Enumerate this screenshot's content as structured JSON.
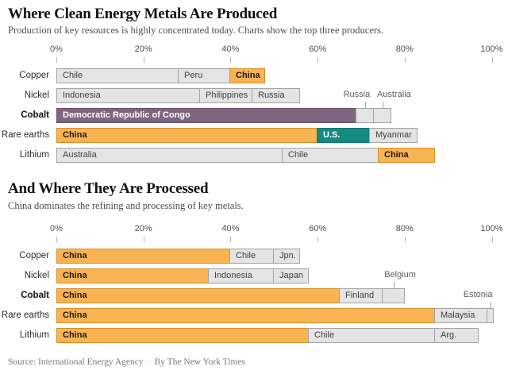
{
  "chart_data": [
    {
      "type": "bar",
      "orientation": "horizontal",
      "title": "Where Clean Energy Metals Are Produced",
      "subtitle": "Production of key resources is highly concentrated today. Charts show the top three producers.",
      "unit": "%",
      "xlim": [
        0,
        100
      ],
      "grid": false,
      "axis": {
        "tick_labels": [
          "0%",
          "20%",
          "40%",
          "60%",
          "80%",
          "100%"
        ],
        "tick_positions": [
          0,
          20,
          40,
          60,
          80,
          100
        ]
      },
      "categories": [
        "Copper",
        "Nickel",
        "Cobalt",
        "Rare earths",
        "Lithium"
      ],
      "rows": [
        {
          "metal": "Copper",
          "segments": [
            {
              "label": "Chile",
              "value": 28,
              "color": "gray"
            },
            {
              "label": "Peru",
              "value": 12,
              "color": "gray"
            },
            {
              "label": "China",
              "value": 8,
              "color": "orange"
            }
          ]
        },
        {
          "metal": "Nickel",
          "segments": [
            {
              "label": "Indonesia",
              "value": 33,
              "color": "gray"
            },
            {
              "label": "Philippines",
              "value": 12,
              "color": "gray"
            },
            {
              "label": "Russia",
              "value": 11,
              "color": "gray"
            }
          ]
        },
        {
          "metal": "Cobalt",
          "bold": true,
          "segments": [
            {
              "label": "Democratic Republic of Congo",
              "value": 69,
              "color": "purple"
            },
            {
              "label": "Russia",
              "value": 4,
              "color": "gray",
              "callout": true,
              "label_dx": -11
            },
            {
              "label": "Australia",
              "value": 4,
              "color": "gray",
              "callout": true,
              "label_dx": 14
            }
          ]
        },
        {
          "metal": "Rare earths",
          "segments": [
            {
              "label": "China",
              "value": 60,
              "color": "orange"
            },
            {
              "label": "U.S.",
              "value": 12,
              "color": "teal"
            },
            {
              "label": "Myanmar",
              "value": 11,
              "color": "gray"
            }
          ]
        },
        {
          "metal": "Lithium",
          "segments": [
            {
              "label": "Australia",
              "value": 52,
              "color": "gray"
            },
            {
              "label": "Chile",
              "value": 22,
              "color": "gray"
            },
            {
              "label": "China",
              "value": 13,
              "color": "orange"
            }
          ]
        }
      ]
    },
    {
      "type": "bar",
      "orientation": "horizontal",
      "title": "And Where They Are Processed",
      "subtitle": "China dominates the refining and processing of key metals.",
      "unit": "%",
      "xlim": [
        0,
        100
      ],
      "grid": false,
      "axis": {
        "tick_labels": [
          "0%",
          "20%",
          "40%",
          "60%",
          "80%",
          "100%"
        ],
        "tick_positions": [
          0,
          20,
          40,
          60,
          80,
          100
        ]
      },
      "categories": [
        "Copper",
        "Nickel",
        "Cobalt",
        "Rare earths",
        "Lithium"
      ],
      "rows": [
        {
          "metal": "Copper",
          "segments": [
            {
              "label": "China",
              "value": 40,
              "color": "orange"
            },
            {
              "label": "Chile",
              "value": 10,
              "color": "gray"
            },
            {
              "label": "Jpn.",
              "value": 6,
              "color": "gray"
            }
          ]
        },
        {
          "metal": "Nickel",
          "segments": [
            {
              "label": "China",
              "value": 35,
              "color": "orange"
            },
            {
              "label": "Indonesia",
              "value": 15,
              "color": "gray"
            },
            {
              "label": "Japan",
              "value": 8,
              "color": "gray"
            }
          ]
        },
        {
          "metal": "Cobalt",
          "bold": true,
          "segments": [
            {
              "label": "China",
              "value": 65,
              "color": "orange"
            },
            {
              "label": "Finland",
              "value": 10,
              "color": "gray"
            },
            {
              "label": "Belgium",
              "value": 5,
              "color": "gray",
              "callout": true,
              "label_dx": 8
            }
          ]
        },
        {
          "metal": "Rare earths",
          "segments": [
            {
              "label": "China",
              "value": 87,
              "color": "orange"
            },
            {
              "label": "Malaysia",
              "value": 12,
              "color": "gray"
            },
            {
              "label": "Estonia",
              "value": 1.5,
              "color": "gray",
              "callout": true,
              "label_dx": -16
            }
          ]
        },
        {
          "metal": "Lithium",
          "segments": [
            {
              "label": "China",
              "value": 58,
              "color": "orange"
            },
            {
              "label": "Chile",
              "value": 29,
              "color": "gray"
            },
            {
              "label": "Arg.",
              "value": 10,
              "color": "gray"
            }
          ]
        }
      ]
    }
  ],
  "footer": {
    "source": "Source: International Energy Agency",
    "separator": "·",
    "byline": "By The New York Times"
  },
  "colors": {
    "china_orange": "#f8b353",
    "orange_border": "#d98f2b",
    "congo_purple": "#7e6680",
    "us_teal": "#158a80",
    "bar_gray": "#e4e4e4",
    "bar_border": "#a3a3a3",
    "title_black": "#121212",
    "subtitle_gray": "#4d4d4d"
  }
}
